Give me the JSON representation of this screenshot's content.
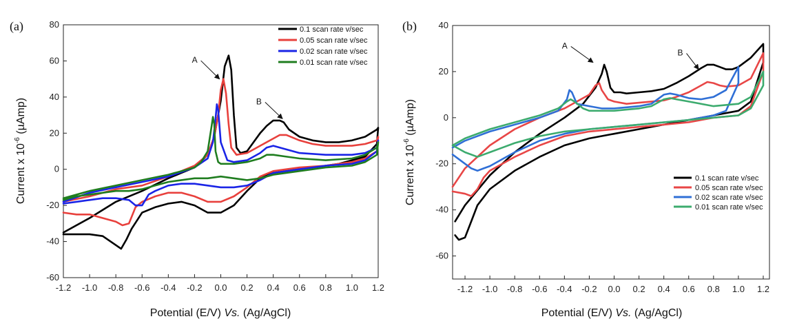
{
  "chart_data": [
    {
      "panel_label": "(a)",
      "type": "line",
      "xlabel_main": "Potential (E/V) ",
      "xlabel_italic": "Vs.",
      "xlabel_tail": " (Ag/AgCl)",
      "ylabel_main": "Current x 10",
      "ylabel_exp": "-6",
      "ylabel_tail": " (µAmp)",
      "xlim": [
        -1.2,
        1.2
      ],
      "ylim": [
        -60,
        80
      ],
      "xticks": [
        -1.2,
        -1.0,
        -0.8,
        -0.6,
        -0.4,
        -0.2,
        0.0,
        0.2,
        0.4,
        0.6,
        0.8,
        1.0,
        1.2
      ],
      "xtick_labels": [
        "-1.2",
        "-1.0",
        "-0.8",
        "-0.6",
        "-0.4",
        "-0.2",
        "0.0",
        "0.2",
        "0.4",
        "0.6",
        "0.8",
        "1.0",
        "1.2"
      ],
      "yticks": [
        -60,
        -40,
        -20,
        0,
        20,
        40,
        60,
        80
      ],
      "ytick_labels": [
        "-60",
        "-40",
        "-20",
        "0",
        "20",
        "40",
        "60",
        "80"
      ],
      "legend_position": "top-right",
      "annotations": [
        {
          "label": "A",
          "text_xy": [
            -0.22,
            59
          ],
          "arrow_to": [
            -0.01,
            50
          ]
        },
        {
          "label": "B",
          "text_xy": [
            0.27,
            36
          ],
          "arrow_to": [
            0.47,
            28
          ]
        }
      ],
      "series": [
        {
          "name": "0.1  scan rate v/sec",
          "color": "#000000",
          "x": [
            -1.2,
            -1.0,
            -0.8,
            -0.6,
            -0.4,
            -0.2,
            -0.1,
            -0.05,
            0.0,
            0.03,
            0.06,
            0.08,
            0.1,
            0.12,
            0.15,
            0.2,
            0.25,
            0.3,
            0.35,
            0.4,
            0.45,
            0.48,
            0.52,
            0.6,
            0.7,
            0.8,
            0.9,
            1.0,
            1.1,
            1.19,
            1.2,
            1.19,
            1.1,
            1.0,
            0.9,
            0.8,
            0.6,
            0.4,
            0.3,
            0.2,
            0.1,
            0.0,
            -0.1,
            -0.2,
            -0.3,
            -0.4,
            -0.5,
            -0.6,
            -0.68,
            -0.72,
            -0.76,
            -0.8,
            -0.9,
            -1.0,
            -1.1,
            -1.2
          ],
          "y": [
            -35,
            -27,
            -18,
            -12,
            -5,
            1,
            8,
            18,
            38,
            57,
            63,
            55,
            30,
            12,
            9,
            10,
            15,
            20,
            24,
            27,
            27,
            26,
            22,
            18,
            16,
            15,
            15,
            16,
            18,
            22,
            23,
            14,
            7,
            5,
            3,
            2,
            0,
            -2,
            -5,
            -12,
            -20,
            -24,
            -24,
            -20,
            -18,
            -19,
            -21,
            -24,
            -33,
            -39,
            -44,
            -42,
            -37,
            -36,
            -36,
            -36
          ]
        },
        {
          "name": "0.05  scan rate v/sec",
          "color": "#e8403c",
          "x": [
            -1.2,
            -1.0,
            -0.8,
            -0.6,
            -0.4,
            -0.2,
            -0.1,
            -0.05,
            -0.02,
            0.0,
            0.02,
            0.04,
            0.06,
            0.08,
            0.12,
            0.2,
            0.3,
            0.4,
            0.45,
            0.5,
            0.6,
            0.7,
            0.8,
            0.9,
            1.0,
            1.1,
            1.19,
            1.2,
            1.19,
            1.1,
            1.0,
            0.9,
            0.8,
            0.6,
            0.4,
            0.3,
            0.2,
            0.1,
            0.0,
            -0.1,
            -0.2,
            -0.3,
            -0.4,
            -0.5,
            -0.6,
            -0.65,
            -0.7,
            -0.75,
            -0.8,
            -0.9,
            -1.0,
            -1.1,
            -1.2
          ],
          "y": [
            -18,
            -15,
            -11,
            -9,
            -4,
            2,
            8,
            18,
            30,
            44,
            50,
            42,
            25,
            12,
            8,
            9,
            13,
            17,
            19,
            19,
            16,
            14,
            13,
            13,
            13,
            14,
            16,
            18,
            10,
            6,
            4,
            3,
            2,
            1,
            -1,
            -4,
            -10,
            -15,
            -18,
            -18,
            -15,
            -13,
            -13,
            -15,
            -18,
            -21,
            -30,
            -31,
            -29,
            -27,
            -25,
            -25,
            -24
          ]
        },
        {
          "name": "0.02  scan rate v/sec",
          "color": "#1a24e6",
          "x": [
            -1.2,
            -1.0,
            -0.8,
            -0.6,
            -0.4,
            -0.2,
            -0.1,
            -0.06,
            -0.04,
            -0.03,
            -0.02,
            0.0,
            0.05,
            0.1,
            0.2,
            0.3,
            0.35,
            0.4,
            0.5,
            0.6,
            0.8,
            1.0,
            1.1,
            1.19,
            1.2,
            1.19,
            1.1,
            1.0,
            0.8,
            0.6,
            0.4,
            0.3,
            0.2,
            0.1,
            0.0,
            -0.1,
            -0.2,
            -0.3,
            -0.4,
            -0.5,
            -0.55,
            -0.6,
            -0.65,
            -0.7,
            -0.8,
            -0.9,
            -1.0,
            -1.1,
            -1.2
          ],
          "y": [
            -18,
            -13,
            -10,
            -7,
            -4,
            1,
            6,
            15,
            28,
            36,
            33,
            15,
            5,
            4,
            5,
            9,
            12,
            13,
            11,
            9,
            8,
            8,
            9,
            12,
            16,
            10,
            5,
            3,
            2,
            0,
            -2,
            -6,
            -9,
            -10,
            -10,
            -9,
            -8,
            -8,
            -9,
            -12,
            -14,
            -20,
            -20,
            -17,
            -16,
            -16,
            -17,
            -18,
            -19
          ]
        },
        {
          "name": "0.01  scan rate v/sec",
          "color": "#1f7d1f",
          "x": [
            -1.2,
            -1.0,
            -0.8,
            -0.6,
            -0.4,
            -0.2,
            -0.15,
            -0.1,
            -0.07,
            -0.06,
            -0.05,
            -0.04,
            -0.02,
            0.0,
            0.1,
            0.2,
            0.3,
            0.35,
            0.4,
            0.5,
            0.6,
            0.8,
            1.0,
            1.1,
            1.19,
            1.2,
            1.19,
            1.1,
            1.0,
            0.8,
            0.6,
            0.4,
            0.3,
            0.2,
            0.1,
            0.0,
            -0.1,
            -0.2,
            -0.3,
            -0.4,
            -0.5,
            -0.6,
            -0.7,
            -0.8,
            -0.9,
            -1.0,
            -1.1,
            -1.2
          ],
          "y": [
            -16,
            -12,
            -9,
            -6,
            -3,
            1,
            4,
            10,
            24,
            29,
            25,
            10,
            4,
            3,
            3,
            4,
            6,
            8,
            8,
            7,
            6,
            5,
            6,
            8,
            12,
            15,
            8,
            4,
            2,
            1,
            -1,
            -3,
            -5,
            -6,
            -5,
            -4,
            -5,
            -5,
            -6,
            -7,
            -9,
            -11,
            -12,
            -12,
            -13,
            -14,
            -15,
            -17
          ]
        }
      ]
    },
    {
      "panel_label": "(b)",
      "type": "line",
      "xlabel_main": "Potential (E/V) ",
      "xlabel_italic": "Vs.",
      "xlabel_tail": " (Ag/AgCl)",
      "ylabel_main": "Current x 10",
      "ylabel_exp": "-6",
      "ylabel_tail": " (µAmp)",
      "xlim": [
        -1.3,
        1.25
      ],
      "ylim": [
        -70,
        40
      ],
      "xticks": [
        -1.2,
        -1.0,
        -0.8,
        -0.6,
        -0.4,
        -0.2,
        0.0,
        0.2,
        0.4,
        0.6,
        0.8,
        1.0,
        1.2
      ],
      "xtick_labels": [
        "-1.2",
        "-1.0",
        "-0.8",
        "-0.6",
        "-0.4",
        "-0.2",
        "0.0",
        "0.2",
        "0.4",
        "0.6",
        "0.8",
        "1.0",
        "1.2"
      ],
      "yticks": [
        -60,
        -40,
        -20,
        0,
        20,
        40
      ],
      "ytick_labels": [
        "-60",
        "-40",
        "-20",
        "0",
        "20",
        "40"
      ],
      "legend_position": "bottom-right",
      "annotations": [
        {
          "label": "A",
          "text_xy": [
            -0.42,
            30
          ],
          "arrow_to": [
            -0.17,
            24
          ]
        },
        {
          "label": "B",
          "text_xy": [
            0.51,
            27
          ],
          "arrow_to": [
            0.68,
            21
          ]
        }
      ],
      "series": [
        {
          "name": "0.1 scan rate v/sec",
          "color": "#000000",
          "x": [
            -1.28,
            -1.2,
            -1.0,
            -0.8,
            -0.6,
            -0.4,
            -0.25,
            -0.15,
            -0.1,
            -0.08,
            -0.06,
            -0.03,
            0.0,
            0.05,
            0.1,
            0.2,
            0.3,
            0.4,
            0.5,
            0.6,
            0.7,
            0.75,
            0.8,
            0.85,
            0.9,
            0.95,
            1.0,
            1.1,
            1.2,
            1.2,
            1.1,
            1.0,
            0.8,
            0.6,
            0.4,
            0.2,
            0.0,
            -0.2,
            -0.4,
            -0.6,
            -0.8,
            -1.0,
            -1.1,
            -1.15,
            -1.2,
            -1.25,
            -1.28
          ],
          "y": [
            -45,
            -38,
            -25,
            -15,
            -7,
            0,
            6,
            13,
            19,
            23,
            20,
            13,
            11,
            11,
            10.5,
            11,
            11.5,
            12.5,
            15,
            18,
            21.5,
            23,
            23,
            22,
            21,
            21,
            22,
            26,
            32,
            24,
            7,
            3,
            1,
            -1,
            -3,
            -5,
            -7,
            -9,
            -12,
            -17,
            -23,
            -31,
            -38,
            -45,
            -52,
            -53,
            -51
          ]
        },
        {
          "name": "0.05 scan rate v/sec",
          "color": "#e84646",
          "x": [
            -1.3,
            -1.2,
            -1.0,
            -0.8,
            -0.6,
            -0.4,
            -0.3,
            -0.2,
            -0.15,
            -0.12,
            -0.1,
            -0.05,
            0.0,
            0.1,
            0.2,
            0.3,
            0.4,
            0.5,
            0.6,
            0.7,
            0.75,
            0.8,
            0.85,
            0.9,
            1.0,
            1.1,
            1.2,
            1.2,
            1.1,
            1.0,
            0.8,
            0.6,
            0.4,
            0.2,
            0.0,
            -0.2,
            -0.4,
            -0.6,
            -0.8,
            -0.9,
            -1.0,
            -1.05,
            -1.1,
            -1.15,
            -1.2,
            -1.3
          ],
          "y": [
            -30,
            -22,
            -12,
            -5,
            0,
            4,
            7,
            10,
            14,
            15,
            12,
            8,
            7,
            6,
            6.5,
            7,
            7.5,
            9,
            11,
            14,
            15.5,
            15,
            14,
            13.5,
            14,
            17,
            28,
            20,
            5,
            1,
            0,
            -2,
            -3,
            -4,
            -5,
            -6,
            -8,
            -12,
            -17,
            -20,
            -23,
            -26,
            -31,
            -34,
            -33,
            -32
          ]
        },
        {
          "name": "0.02 scan rate v/sec",
          "color": "#2f6fd6",
          "x": [
            -1.3,
            -1.2,
            -1.0,
            -0.8,
            -0.6,
            -0.45,
            -0.38,
            -0.36,
            -0.34,
            -0.3,
            -0.2,
            -0.1,
            0.0,
            0.1,
            0.2,
            0.3,
            0.35,
            0.4,
            0.45,
            0.5,
            0.6,
            0.7,
            0.8,
            0.9,
            1.0,
            1.0,
            0.9,
            0.8,
            0.6,
            0.4,
            0.2,
            0.0,
            -0.2,
            -0.4,
            -0.6,
            -0.8,
            -0.9,
            -1.0,
            -1.05,
            -1.1,
            -1.15,
            -1.2,
            -1.3
          ],
          "y": [
            -13,
            -10,
            -6,
            -3,
            0,
            3,
            8,
            12,
            11,
            6,
            5,
            4,
            4,
            4.5,
            5,
            6,
            8,
            10,
            10.5,
            10,
            8.5,
            8,
            9,
            12,
            22,
            15,
            3,
            1,
            -1,
            -2,
            -3,
            -4,
            -5,
            -7,
            -10,
            -15,
            -18,
            -21,
            -22,
            -23,
            -22,
            -20,
            -16
          ]
        },
        {
          "name": "0.01 scan rate v/sec",
          "color": "#3cab6e",
          "x": [
            -1.3,
            -1.2,
            -1.0,
            -0.8,
            -0.6,
            -0.45,
            -0.38,
            -0.35,
            -0.32,
            -0.25,
            -0.2,
            -0.1,
            0.0,
            0.1,
            0.2,
            0.3,
            0.35,
            0.4,
            0.45,
            0.5,
            0.6,
            0.8,
            1.0,
            1.1,
            1.2,
            1.2,
            1.1,
            1.0,
            0.8,
            0.6,
            0.4,
            0.2,
            0.0,
            -0.2,
            -0.4,
            -0.6,
            -0.8,
            -0.9,
            -1.0,
            -1.05,
            -1.1,
            -1.2,
            -1.3
          ],
          "y": [
            -12,
            -9,
            -5,
            -2,
            1,
            4,
            7,
            8,
            7,
            4,
            3,
            3,
            3,
            3.5,
            4,
            5,
            6.5,
            8,
            8.5,
            8,
            7,
            5,
            6,
            9,
            20,
            14,
            4,
            1,
            0,
            -1,
            -2,
            -3,
            -4,
            -5,
            -6,
            -8,
            -11,
            -13,
            -15,
            -16,
            -17,
            -15,
            -12
          ]
        }
      ]
    }
  ]
}
